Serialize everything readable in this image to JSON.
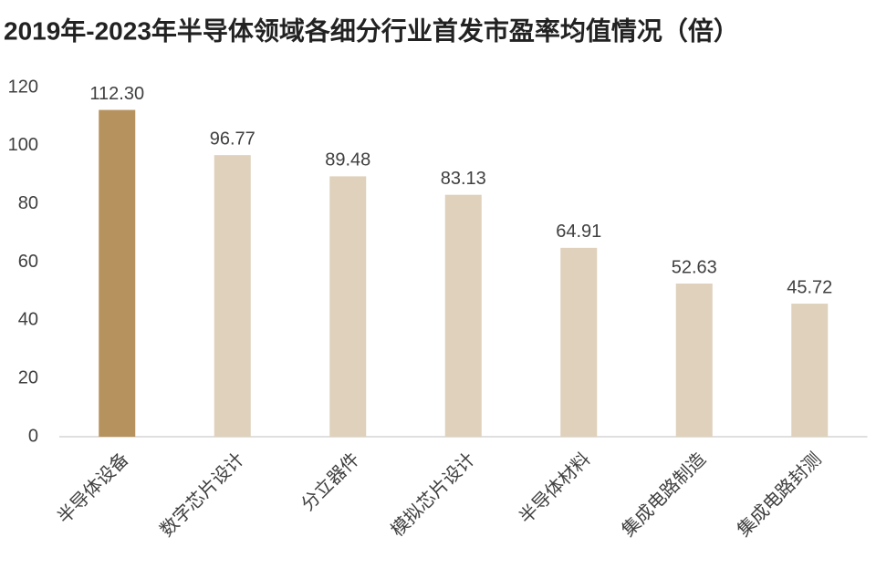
{
  "chart_data": {
    "type": "bar",
    "title": "2019年-2023年半导体领域各细分行业首发市盈率均值情况（倍）",
    "categories": [
      "半导体设备",
      "数字芯片设计",
      "分立器件",
      "模拟芯片设计",
      "半导体材料",
      "集成电路制造",
      "集成电路封测"
    ],
    "values": [
      112.3,
      96.77,
      89.48,
      83.13,
      64.91,
      52.63,
      45.72
    ],
    "value_labels": [
      "112.30",
      "96.77",
      "89.48",
      "83.13",
      "64.91",
      "52.63",
      "45.72"
    ],
    "colors": [
      "#b5925e",
      "#dfd1bb",
      "#dfd1bb",
      "#dfd1bb",
      "#dfd1bb",
      "#dfd1bb",
      "#dfd1bb"
    ],
    "ylim": [
      0,
      120
    ],
    "yticks": [
      0,
      20,
      40,
      60,
      80,
      100,
      120
    ],
    "grid": false
  }
}
